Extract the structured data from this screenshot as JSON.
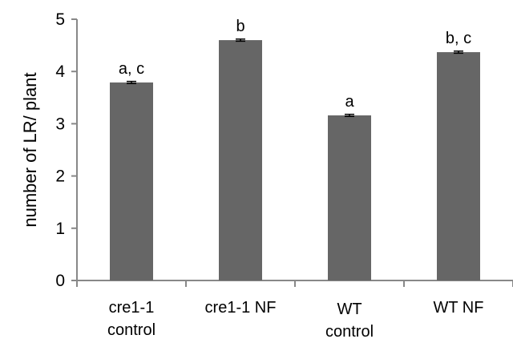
{
  "chart_data": {
    "type": "bar",
    "title": "",
    "xlabel": "",
    "ylabel": "number of LR/ plant",
    "ylim": [
      0,
      5
    ],
    "yticks": [
      0,
      1,
      2,
      3,
      4,
      5
    ],
    "grid": false,
    "categories": [
      [
        "cre1-1",
        "control"
      ],
      [
        "cre1-1 NF"
      ],
      [
        "WT",
        "control"
      ],
      [
        "WT  NF"
      ]
    ],
    "values": [
      3.79,
      4.6,
      3.16,
      4.37
    ],
    "errors": [
      0.02,
      0.02,
      0.02,
      0.02
    ],
    "significance": [
      "a, c",
      "b",
      "a",
      "b, c"
    ],
    "bar_color": "#666666"
  }
}
